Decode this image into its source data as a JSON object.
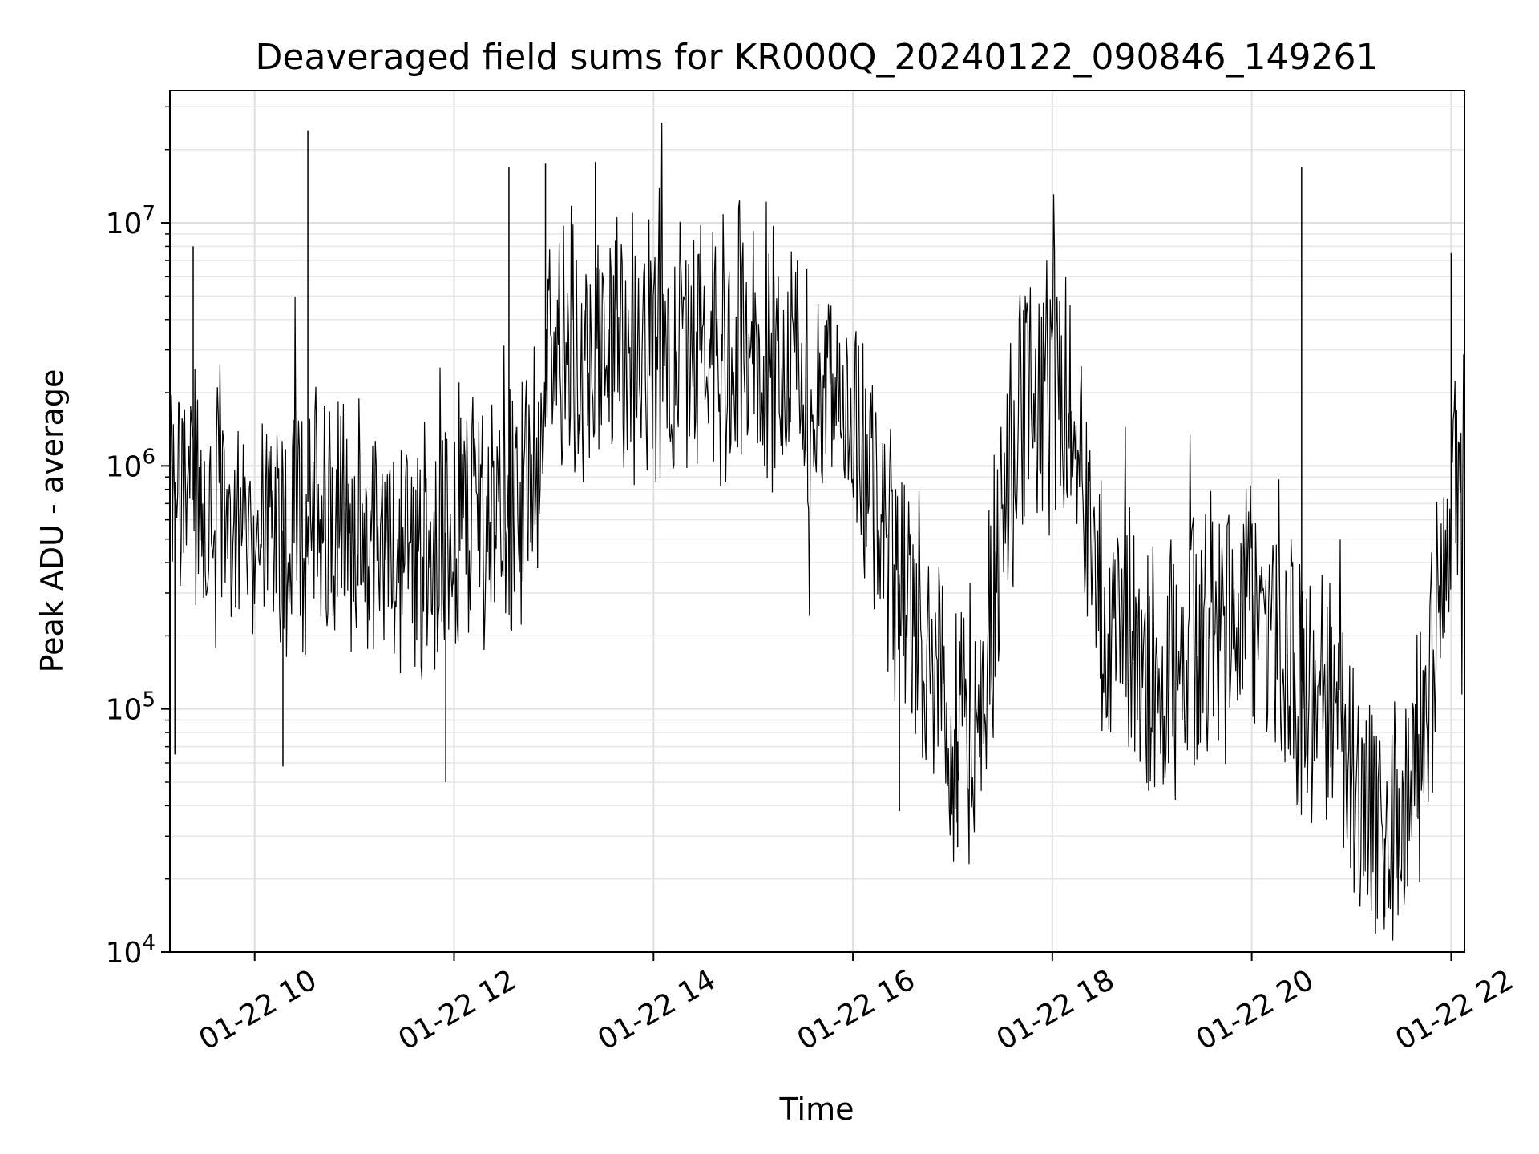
{
  "chart_data": {
    "type": "line",
    "title": "Deaveraged field sums for KR000Q_20240122_090846_149261",
    "xlabel": "Time",
    "ylabel": "Peak ADU - average",
    "yscale": "log",
    "ylim": [
      10000,
      35000000
    ],
    "xlim": [
      "2024-01-22 09:09",
      "2024-01-22 22:08"
    ],
    "grid": true,
    "line_color": "#000000",
    "x_ticks": [
      {
        "value": "2024-01-22 10:00",
        "label": "01-22 10"
      },
      {
        "value": "2024-01-22 12:00",
        "label": "01-22 12"
      },
      {
        "value": "2024-01-22 14:00",
        "label": "01-22 14"
      },
      {
        "value": "2024-01-22 16:00",
        "label": "01-22 16"
      },
      {
        "value": "2024-01-22 18:00",
        "label": "01-22 18"
      },
      {
        "value": "2024-01-22 20:00",
        "label": "01-22 20"
      },
      {
        "value": "2024-01-22 22:00",
        "label": "01-22 22"
      }
    ],
    "y_ticks": [
      {
        "value": 10000,
        "base": "10",
        "exp": "4"
      },
      {
        "value": 100000,
        "base": "10",
        "exp": "5"
      },
      {
        "value": 1000000,
        "base": "10",
        "exp": "6"
      },
      {
        "value": 10000000,
        "base": "10",
        "exp": "7"
      }
    ],
    "series": [
      {
        "x": [
          "2024-01-22 09:09",
          "2024-01-22 09:30",
          "2024-01-22 10:00",
          "2024-01-22 10:30",
          "2024-01-22 10:33",
          "2024-01-22 11:00",
          "2024-01-22 11:30",
          "2024-01-22 12:00",
          "2024-01-22 12:15",
          "2024-01-22 12:30",
          "2024-01-22 12:45",
          "2024-01-22 13:00",
          "2024-01-22 13:30",
          "2024-01-22 14:00",
          "2024-01-22 14:30",
          "2024-01-22 15:00",
          "2024-01-22 15:30",
          "2024-01-22 16:00",
          "2024-01-22 16:20",
          "2024-01-22 16:40",
          "2024-01-22 17:00",
          "2024-01-22 17:10",
          "2024-01-22 17:20",
          "2024-01-22 17:40",
          "2024-01-22 18:00",
          "2024-01-22 18:15",
          "2024-01-22 18:30",
          "2024-01-22 19:00",
          "2024-01-22 19:30",
          "2024-01-22 20:00",
          "2024-01-22 20:15",
          "2024-01-22 20:30",
          "2024-01-22 20:50",
          "2024-01-22 21:00",
          "2024-01-22 21:15",
          "2024-01-22 21:30",
          "2024-01-22 21:45",
          "2024-01-22 22:00",
          "2024-01-22 22:08"
        ],
        "values": [
          900000,
          650000,
          600000,
          500000,
          850000,
          550000,
          450000,
          550000,
          700000,
          600000,
          700000,
          3500000,
          3200000,
          3000000,
          2600000,
          2500000,
          2300000,
          1800000,
          450000,
          200000,
          80000,
          60000,
          150000,
          1800000,
          1900000,
          1500000,
          250000,
          150000,
          220000,
          300000,
          200000,
          130000,
          100000,
          50000,
          30000,
          28000,
          100000,
          600000,
          950000
        ]
      }
    ],
    "peaks": [
      {
        "x": "2024-01-22 09:23",
        "value": 8000000
      },
      {
        "x": "2024-01-22 10:32",
        "value": 24000000
      },
      {
        "x": "2024-01-22 12:33",
        "value": 17000000
      },
      {
        "x": "2024-01-22 12:55",
        "value": 17500000
      },
      {
        "x": "2024-01-22 13:25",
        "value": 17800000
      },
      {
        "x": "2024-01-22 20:30",
        "value": 17000000
      },
      {
        "x": "2024-01-22 22:00",
        "value": 7500000
      }
    ],
    "dips": [
      {
        "x": "2024-01-22 09:12",
        "value": 65000
      },
      {
        "x": "2024-01-22 10:17",
        "value": 58000
      },
      {
        "x": "2024-01-22 11:55",
        "value": 50000
      },
      {
        "x": "2024-01-22 16:28",
        "value": 38000
      },
      {
        "x": "2024-01-22 17:03",
        "value": 27000
      },
      {
        "x": "2024-01-22 21:20",
        "value": 14000
      }
    ]
  }
}
